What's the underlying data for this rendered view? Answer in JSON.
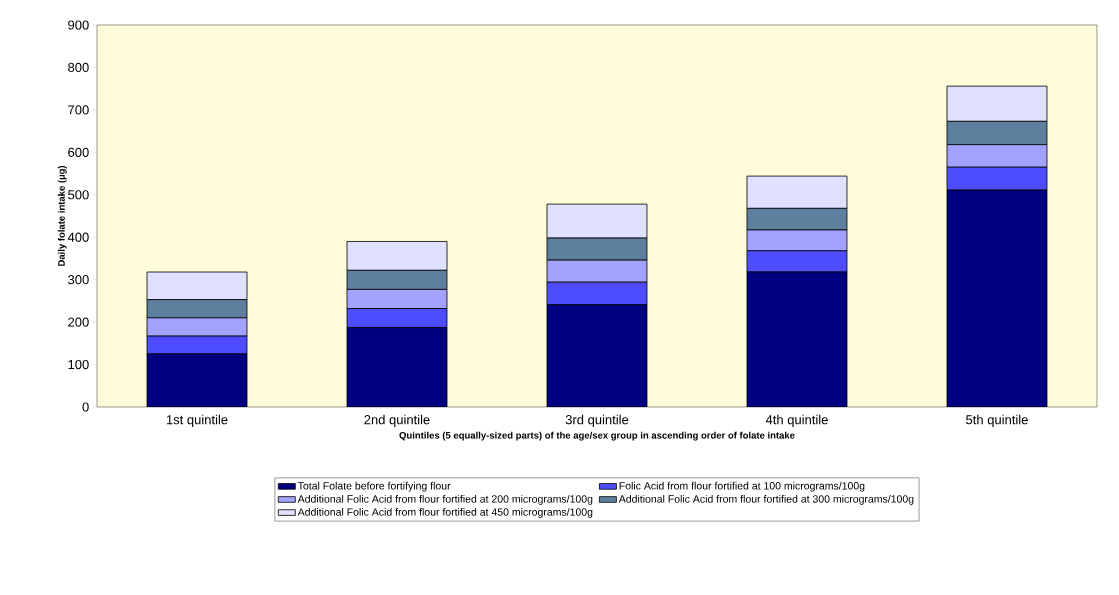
{
  "chart_data": {
    "type": "bar",
    "stacked": true,
    "xlabel": "Quintiles (5 equally-sized parts) of the age/sex group in ascending order of folate intake",
    "ylabel": "Daily folate intake (µg)",
    "categories": [
      "1st quintile",
      "2nd quintile",
      "3rd quintile",
      "4th quintile",
      "5th quintile"
    ],
    "series": [
      {
        "name": "Total Folate before fortifying flour",
        "color": "#000080",
        "values": [
          125,
          187,
          241,
          318,
          511
        ]
      },
      {
        "name": "Folic Acid from flour fortified at 100 micrograms/100g",
        "color": "#4d4dff",
        "values": [
          42,
          45,
          53,
          50,
          54
        ]
      },
      {
        "name": "Additional Folic Acid from flour fortified at 200 micrograms/100g",
        "color": "#a3a3ff",
        "values": [
          43,
          45,
          52,
          49,
          53
        ]
      },
      {
        "name": "Additional Folic Acid from flour fortified at 300 micrograms/100g",
        "color": "#5f7f9f",
        "values": [
          43,
          45,
          52,
          51,
          55
        ]
      },
      {
        "name": "Additional Folic Acid from flour fortified at 450 micrograms/100g",
        "color": "#e0e0ff",
        "values": [
          65,
          68,
          80,
          76,
          83
        ]
      }
    ],
    "ylim": [
      0,
      900
    ],
    "yticks": [
      0,
      100,
      200,
      300,
      400,
      500,
      600,
      700,
      800,
      900
    ],
    "legend": "bottom"
  }
}
